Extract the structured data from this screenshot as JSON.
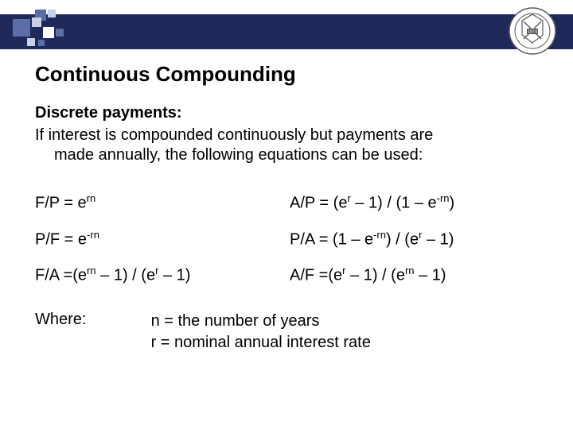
{
  "header": {
    "bar_color": "#1f2a5a",
    "square_colors": {
      "dark": "#5a6ea8",
      "light": "#c8d0e8",
      "white": "#ffffff"
    }
  },
  "title": "Continuous Compounding",
  "subtitle": "Discrete payments:",
  "description_line1": "If interest is compounded continuously but payments are",
  "description_line2": "made annually, the following equations can be used:",
  "equations": {
    "rows": [
      {
        "left_html": "F/P  = e<sup>rn</sup>",
        "right_html": "A/P = (e<sup>r</sup> – 1) / (1 – e<sup>-rn</sup>)"
      },
      {
        "left_html": "P/F  = e<sup>-rn</sup>",
        "right_html": "P/A = (1 – e<sup>-rn</sup>) / (e<sup>r</sup> – 1)"
      },
      {
        "left_html": "F/A =(e<sup>rn</sup> – 1) / (e<sup>r</sup> – 1)",
        "right_html": "A/F =(e<sup>r</sup> – 1) / (e<sup>rn</sup> – 1)"
      }
    ]
  },
  "where_label": "Where:",
  "where_defs": [
    "n = the number of years",
    "r = nominal annual interest rate"
  ],
  "logo": {
    "year": "1874",
    "ring_color": "#5a5a5a"
  }
}
